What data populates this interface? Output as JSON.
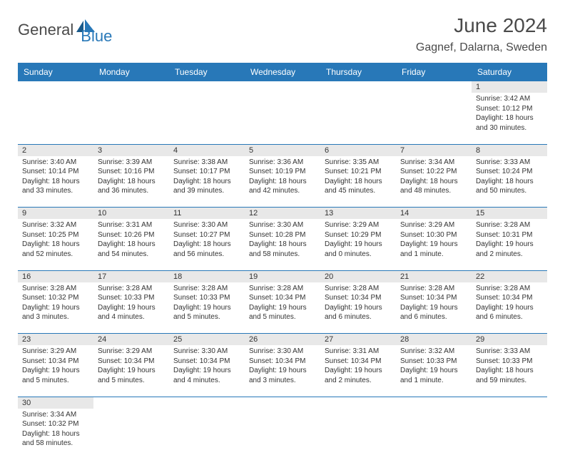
{
  "logo": {
    "general": "General",
    "blue": "Blue"
  },
  "title": "June 2024",
  "location": "Gagnef, Dalarna, Sweden",
  "headers": [
    "Sunday",
    "Monday",
    "Tuesday",
    "Wednesday",
    "Thursday",
    "Friday",
    "Saturday"
  ],
  "colors": {
    "header_bg": "#2878b8",
    "header_text": "#ffffff",
    "daynum_bg": "#e8e8e8",
    "text": "#333333",
    "logo_gray": "#4a4a4a",
    "logo_blue": "#2878b8"
  },
  "weeks": [
    [
      null,
      null,
      null,
      null,
      null,
      null,
      {
        "n": "1",
        "sr": "Sunrise: 3:42 AM",
        "ss": "Sunset: 10:12 PM",
        "d1": "Daylight: 18 hours",
        "d2": "and 30 minutes."
      }
    ],
    [
      {
        "n": "2",
        "sr": "Sunrise: 3:40 AM",
        "ss": "Sunset: 10:14 PM",
        "d1": "Daylight: 18 hours",
        "d2": "and 33 minutes."
      },
      {
        "n": "3",
        "sr": "Sunrise: 3:39 AM",
        "ss": "Sunset: 10:16 PM",
        "d1": "Daylight: 18 hours",
        "d2": "and 36 minutes."
      },
      {
        "n": "4",
        "sr": "Sunrise: 3:38 AM",
        "ss": "Sunset: 10:17 PM",
        "d1": "Daylight: 18 hours",
        "d2": "and 39 minutes."
      },
      {
        "n": "5",
        "sr": "Sunrise: 3:36 AM",
        "ss": "Sunset: 10:19 PM",
        "d1": "Daylight: 18 hours",
        "d2": "and 42 minutes."
      },
      {
        "n": "6",
        "sr": "Sunrise: 3:35 AM",
        "ss": "Sunset: 10:21 PM",
        "d1": "Daylight: 18 hours",
        "d2": "and 45 minutes."
      },
      {
        "n": "7",
        "sr": "Sunrise: 3:34 AM",
        "ss": "Sunset: 10:22 PM",
        "d1": "Daylight: 18 hours",
        "d2": "and 48 minutes."
      },
      {
        "n": "8",
        "sr": "Sunrise: 3:33 AM",
        "ss": "Sunset: 10:24 PM",
        "d1": "Daylight: 18 hours",
        "d2": "and 50 minutes."
      }
    ],
    [
      {
        "n": "9",
        "sr": "Sunrise: 3:32 AM",
        "ss": "Sunset: 10:25 PM",
        "d1": "Daylight: 18 hours",
        "d2": "and 52 minutes."
      },
      {
        "n": "10",
        "sr": "Sunrise: 3:31 AM",
        "ss": "Sunset: 10:26 PM",
        "d1": "Daylight: 18 hours",
        "d2": "and 54 minutes."
      },
      {
        "n": "11",
        "sr": "Sunrise: 3:30 AM",
        "ss": "Sunset: 10:27 PM",
        "d1": "Daylight: 18 hours",
        "d2": "and 56 minutes."
      },
      {
        "n": "12",
        "sr": "Sunrise: 3:30 AM",
        "ss": "Sunset: 10:28 PM",
        "d1": "Daylight: 18 hours",
        "d2": "and 58 minutes."
      },
      {
        "n": "13",
        "sr": "Sunrise: 3:29 AM",
        "ss": "Sunset: 10:29 PM",
        "d1": "Daylight: 19 hours",
        "d2": "and 0 minutes."
      },
      {
        "n": "14",
        "sr": "Sunrise: 3:29 AM",
        "ss": "Sunset: 10:30 PM",
        "d1": "Daylight: 19 hours",
        "d2": "and 1 minute."
      },
      {
        "n": "15",
        "sr": "Sunrise: 3:28 AM",
        "ss": "Sunset: 10:31 PM",
        "d1": "Daylight: 19 hours",
        "d2": "and 2 minutes."
      }
    ],
    [
      {
        "n": "16",
        "sr": "Sunrise: 3:28 AM",
        "ss": "Sunset: 10:32 PM",
        "d1": "Daylight: 19 hours",
        "d2": "and 3 minutes."
      },
      {
        "n": "17",
        "sr": "Sunrise: 3:28 AM",
        "ss": "Sunset: 10:33 PM",
        "d1": "Daylight: 19 hours",
        "d2": "and 4 minutes."
      },
      {
        "n": "18",
        "sr": "Sunrise: 3:28 AM",
        "ss": "Sunset: 10:33 PM",
        "d1": "Daylight: 19 hours",
        "d2": "and 5 minutes."
      },
      {
        "n": "19",
        "sr": "Sunrise: 3:28 AM",
        "ss": "Sunset: 10:34 PM",
        "d1": "Daylight: 19 hours",
        "d2": "and 5 minutes."
      },
      {
        "n": "20",
        "sr": "Sunrise: 3:28 AM",
        "ss": "Sunset: 10:34 PM",
        "d1": "Daylight: 19 hours",
        "d2": "and 6 minutes."
      },
      {
        "n": "21",
        "sr": "Sunrise: 3:28 AM",
        "ss": "Sunset: 10:34 PM",
        "d1": "Daylight: 19 hours",
        "d2": "and 6 minutes."
      },
      {
        "n": "22",
        "sr": "Sunrise: 3:28 AM",
        "ss": "Sunset: 10:34 PM",
        "d1": "Daylight: 19 hours",
        "d2": "and 6 minutes."
      }
    ],
    [
      {
        "n": "23",
        "sr": "Sunrise: 3:29 AM",
        "ss": "Sunset: 10:34 PM",
        "d1": "Daylight: 19 hours",
        "d2": "and 5 minutes."
      },
      {
        "n": "24",
        "sr": "Sunrise: 3:29 AM",
        "ss": "Sunset: 10:34 PM",
        "d1": "Daylight: 19 hours",
        "d2": "and 5 minutes."
      },
      {
        "n": "25",
        "sr": "Sunrise: 3:30 AM",
        "ss": "Sunset: 10:34 PM",
        "d1": "Daylight: 19 hours",
        "d2": "and 4 minutes."
      },
      {
        "n": "26",
        "sr": "Sunrise: 3:30 AM",
        "ss": "Sunset: 10:34 PM",
        "d1": "Daylight: 19 hours",
        "d2": "and 3 minutes."
      },
      {
        "n": "27",
        "sr": "Sunrise: 3:31 AM",
        "ss": "Sunset: 10:34 PM",
        "d1": "Daylight: 19 hours",
        "d2": "and 2 minutes."
      },
      {
        "n": "28",
        "sr": "Sunrise: 3:32 AM",
        "ss": "Sunset: 10:33 PM",
        "d1": "Daylight: 19 hours",
        "d2": "and 1 minute."
      },
      {
        "n": "29",
        "sr": "Sunrise: 3:33 AM",
        "ss": "Sunset: 10:33 PM",
        "d1": "Daylight: 18 hours",
        "d2": "and 59 minutes."
      }
    ],
    [
      {
        "n": "30",
        "sr": "Sunrise: 3:34 AM",
        "ss": "Sunset: 10:32 PM",
        "d1": "Daylight: 18 hours",
        "d2": "and 58 minutes."
      },
      null,
      null,
      null,
      null,
      null,
      null
    ]
  ]
}
